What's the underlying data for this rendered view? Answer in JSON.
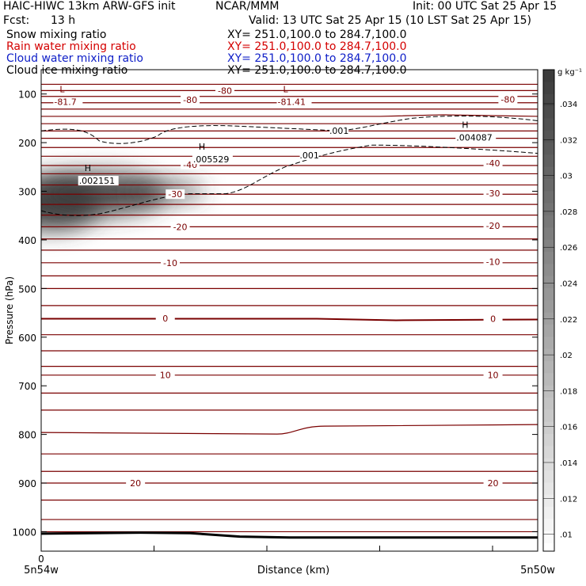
{
  "header": {
    "title_left": "HAIC-HIWC 13km ARW-GFS init",
    "org": "NCAR/MMM",
    "init": "Init: 00 UTC Sat 25 Apr 15",
    "fcst_label": "Fcst:",
    "fcst_value": "13 h",
    "valid": "Valid: 13 UTC Sat 25 Apr 15 (10 LST Sat 25 Apr 15)"
  },
  "fields": [
    {
      "name": "Snow mixing ratio",
      "xy": "XY= 251.0,100.0 to 284.7,100.0",
      "color": "#000000"
    },
    {
      "name": "Rain water mixing ratio",
      "xy": "XY= 251.0,100.0 to 284.7,100.0",
      "color": "#d40000"
    },
    {
      "name": "Cloud water mixing ratio",
      "xy": "XY= 251.0,100.0 to 284.7,100.0",
      "color": "#1020c8"
    },
    {
      "name": "Cloud ice mixing ratio",
      "xy": "XY= 251.0,100.0 to 284.7,100.0",
      "color": "#000000"
    }
  ],
  "colors": {
    "temperature_contour": "#7a0000",
    "ice_dashed": "#000000",
    "shading_max": "#3c3c3c",
    "frame": "#000000"
  },
  "chart_data": {
    "type": "contour_cross_section",
    "ylabel": "Pressure (hPa)",
    "xlabel": "Distance (km)",
    "x_start_label": "5n54w",
    "x_end_label": "5n50w",
    "x_zero_label": "0",
    "ylim": [
      1040,
      50
    ],
    "y_scale": "linear",
    "y_ticks": [
      100,
      200,
      300,
      400,
      500,
      600,
      700,
      800,
      900,
      1000
    ],
    "colorbar": {
      "unit": "g kg⁻¹",
      "ticks": [
        ".034",
        ".032",
        ".03",
        ".028",
        ".026",
        ".024",
        ".022",
        ".02",
        ".018",
        ".016",
        ".014",
        ".012",
        ".01"
      ]
    },
    "temperature_labels": [
      {
        "text": "-80",
        "x": 0.37,
        "p": 93
      },
      {
        "text": "-80",
        "x": 0.94,
        "p": 111
      },
      {
        "text": "-80",
        "x": 0.3,
        "p": 112
      },
      {
        "text": "-40",
        "x": 0.3,
        "p": 245
      },
      {
        "text": "-40",
        "x": 0.91,
        "p": 242
      },
      {
        "text": "-30",
        "x": 0.27,
        "p": 306
      },
      {
        "text": "-30",
        "x": 0.91,
        "p": 304
      },
      {
        "text": "-20",
        "x": 0.28,
        "p": 373
      },
      {
        "text": "-20",
        "x": 0.91,
        "p": 371
      },
      {
        "text": "-10",
        "x": 0.26,
        "p": 447
      },
      {
        "text": "-10",
        "x": 0.91,
        "p": 445
      },
      {
        "text": "0",
        "x": 0.25,
        "p": 561
      },
      {
        "text": "0",
        "x": 0.91,
        "p": 562
      },
      {
        "text": "10",
        "x": 0.25,
        "p": 678
      },
      {
        "text": "10",
        "x": 0.91,
        "p": 678
      },
      {
        "text": "20",
        "x": 0.19,
        "p": 900
      },
      {
        "text": "20",
        "x": 0.91,
        "p": 900
      }
    ],
    "extrema": [
      {
        "mark": "L",
        "value": "-81.7",
        "x": 0.05,
        "p": 108
      },
      {
        "mark": "L",
        "value": "-81.41",
        "x": 0.5,
        "p": 108
      },
      {
        "mark": "H",
        "value": ".002151",
        "x": 0.1,
        "p": 270
      },
      {
        "mark": "H",
        "value": ".005529",
        "x": 0.33,
        "p": 226
      },
      {
        "mark": "H",
        "value": ".004087",
        "x": 0.86,
        "p": 181
      }
    ],
    "ice_contour_labels": [
      {
        "text": ".001",
        "x": 0.6,
        "p": 175
      },
      {
        "text": ".001",
        "x": 0.54,
        "p": 226
      }
    ],
    "temperature_isotherm_pressures": [
      80,
      93,
      105,
      118,
      131,
      146,
      161,
      176,
      191,
      210,
      228,
      247,
      264,
      287,
      306,
      327,
      349,
      373,
      398,
      421,
      447,
      474,
      500,
      535,
      562,
      595,
      628,
      660,
      678,
      715,
      750,
      796,
      840,
      876,
      900,
      935,
      975,
      1000
    ],
    "surface_pressure": [
      1004,
      1003,
      1002,
      1003,
      1010,
      1012,
      1012,
      1012,
      1012,
      1012,
      1012
    ],
    "shading": [
      {
        "x": 0.02,
        "p": 325,
        "value": 0.032,
        "rx": 0.1,
        "rp": 55
      },
      {
        "x": 0.12,
        "p": 305,
        "value": 0.03,
        "rx": 0.13,
        "rp": 45
      },
      {
        "x": 0.25,
        "p": 300,
        "value": 0.02,
        "rx": 0.08,
        "rp": 25
      }
    ]
  }
}
